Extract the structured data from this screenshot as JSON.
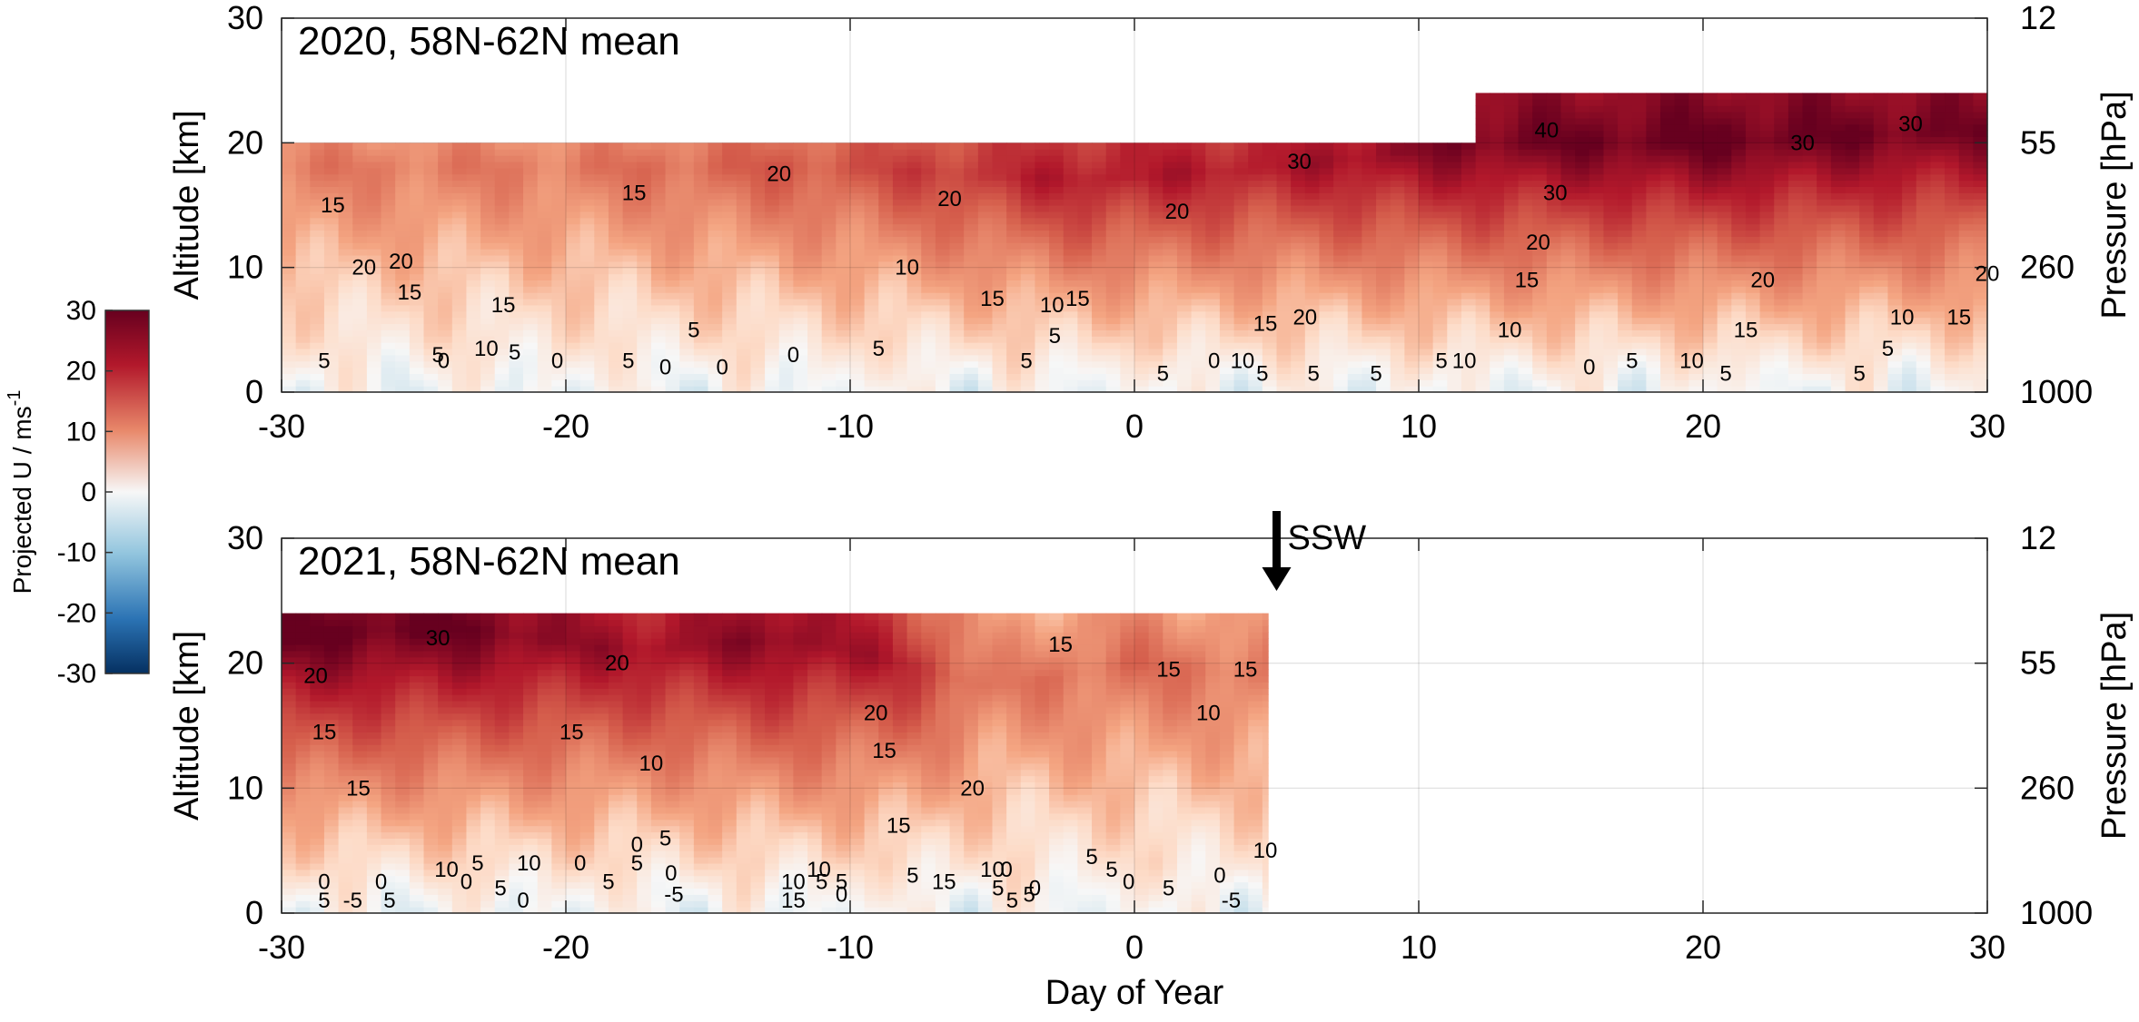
{
  "chart_data": {
    "type": "heatmap",
    "colorbar": {
      "title": "Projected U / ms",
      "title_superscript": "-1",
      "range": [
        -30,
        30
      ],
      "ticks": [
        30,
        20,
        10,
        0,
        -10,
        -20,
        -30
      ],
      "colormap": "blue-white-red",
      "colors": {
        "negative": "#1f4e8c",
        "zero": "#f4f6f7",
        "positive": "#6e0019"
      }
    },
    "panels": [
      {
        "title": "2020, 58N-62N mean",
        "xlabel": "",
        "ylabel": "Altitude [km]",
        "ylabel_right": "Pressure [hPa]",
        "xlim": [
          -30,
          30
        ],
        "ylim": [
          0,
          30
        ],
        "x_ticks": [
          "-30",
          "-20",
          "-10",
          "0",
          "10",
          "20",
          "30"
        ],
        "y_ticks": [
          "0",
          "10",
          "20",
          "30"
        ],
        "right_ticks": [
          "1000",
          "260",
          "55",
          "12"
        ],
        "grid": true,
        "data_top": [
          {
            "x": -30,
            "top": 20
          },
          {
            "x": 12,
            "top": 20
          },
          {
            "x": 12,
            "top": 24
          },
          {
            "x": 30,
            "top": 24
          }
        ],
        "jet": [
          {
            "x": -30,
            "z": 18,
            "peak": 16
          },
          {
            "x": -20,
            "z": 18,
            "peak": 16
          },
          {
            "x": -10,
            "z": 18,
            "peak": 22
          },
          {
            "x": -2,
            "z": 17,
            "peak": 30
          },
          {
            "x": 5,
            "z": 18,
            "peak": 30
          },
          {
            "x": 12,
            "z": 20,
            "peak": 38
          },
          {
            "x": 20,
            "z": 20,
            "peak": 40
          },
          {
            "x": 30,
            "z": 21,
            "peak": 38
          }
        ],
        "contour_labels": [
          {
            "x": -28.2,
            "y": 15,
            "text": "15"
          },
          {
            "x": -27.1,
            "y": 10,
            "text": "20"
          },
          {
            "x": -25.8,
            "y": 10.5,
            "text": "20"
          },
          {
            "x": -25.5,
            "y": 8,
            "text": "15"
          },
          {
            "x": -28.5,
            "y": 2.5,
            "text": "5"
          },
          {
            "x": -24.5,
            "y": 3,
            "text": "5"
          },
          {
            "x": -24.3,
            "y": 2.5,
            "text": "0"
          },
          {
            "x": -22.2,
            "y": 7,
            "text": "15"
          },
          {
            "x": -22.8,
            "y": 3.5,
            "text": "10"
          },
          {
            "x": -21.8,
            "y": 3.2,
            "text": "5"
          },
          {
            "x": -20.3,
            "y": 2.5,
            "text": "0"
          },
          {
            "x": -17.8,
            "y": 2.5,
            "text": "5"
          },
          {
            "x": -17.6,
            "y": 16,
            "text": "15"
          },
          {
            "x": -16.5,
            "y": 2,
            "text": "0"
          },
          {
            "x": -15.5,
            "y": 5,
            "text": "5"
          },
          {
            "x": -14.5,
            "y": 2,
            "text": "0"
          },
          {
            "x": -12.5,
            "y": 17.5,
            "text": "20"
          },
          {
            "x": -12,
            "y": 3,
            "text": "0"
          },
          {
            "x": -9,
            "y": 3.5,
            "text": "5"
          },
          {
            "x": -8,
            "y": 10,
            "text": "10"
          },
          {
            "x": -6.5,
            "y": 15.5,
            "text": "20"
          },
          {
            "x": -5,
            "y": 7.5,
            "text": "15"
          },
          {
            "x": -3.8,
            "y": 2.5,
            "text": "5"
          },
          {
            "x": -2.8,
            "y": 4.5,
            "text": "5"
          },
          {
            "x": -2.9,
            "y": 7,
            "text": "10"
          },
          {
            "x": -2,
            "y": 7.5,
            "text": "15"
          },
          {
            "x": 1,
            "y": 1.5,
            "text": "5"
          },
          {
            "x": 1.5,
            "y": 14.5,
            "text": "20"
          },
          {
            "x": 2.8,
            "y": 2.5,
            "text": "0"
          },
          {
            "x": 3.8,
            "y": 2.5,
            "text": "10"
          },
          {
            "x": 4.5,
            "y": 1.5,
            "text": "5"
          },
          {
            "x": 4.6,
            "y": 5.5,
            "text": "15"
          },
          {
            "x": 5.8,
            "y": 18.5,
            "text": "30"
          },
          {
            "x": 6,
            "y": 6,
            "text": "20"
          },
          {
            "x": 6.3,
            "y": 1.5,
            "text": "5"
          },
          {
            "x": 8.5,
            "y": 1.5,
            "text": "5"
          },
          {
            "x": 10.8,
            "y": 2.5,
            "text": "5"
          },
          {
            "x": 11.6,
            "y": 2.5,
            "text": "10"
          },
          {
            "x": 13.2,
            "y": 5,
            "text": "10"
          },
          {
            "x": 13.8,
            "y": 9,
            "text": "15"
          },
          {
            "x": 14.5,
            "y": 21,
            "text": "40"
          },
          {
            "x": 14.8,
            "y": 16,
            "text": "30"
          },
          {
            "x": 14.2,
            "y": 12,
            "text": "20"
          },
          {
            "x": 16,
            "y": 2,
            "text": "0"
          },
          {
            "x": 17.5,
            "y": 2.5,
            "text": "5"
          },
          {
            "x": 19.6,
            "y": 2.5,
            "text": "10"
          },
          {
            "x": 20.8,
            "y": 1.5,
            "text": "5"
          },
          {
            "x": 21.5,
            "y": 5,
            "text": "15"
          },
          {
            "x": 22.1,
            "y": 9,
            "text": "20"
          },
          {
            "x": 23.5,
            "y": 20,
            "text": "30"
          },
          {
            "x": 25.5,
            "y": 1.5,
            "text": "5"
          },
          {
            "x": 26.5,
            "y": 3.5,
            "text": "5"
          },
          {
            "x": 27,
            "y": 6,
            "text": "10"
          },
          {
            "x": 27.3,
            "y": 21.5,
            "text": "30"
          },
          {
            "x": 29,
            "y": 6,
            "text": "15"
          },
          {
            "x": 30,
            "y": 9.5,
            "text": "20"
          }
        ],
        "annotations": []
      },
      {
        "title": "2021, 58N-62N mean",
        "xlabel": "Day of Year",
        "ylabel": "Altitude [km]",
        "ylabel_right": "Pressure [hPa]",
        "xlim": [
          -30,
          30
        ],
        "ylim": [
          0,
          30
        ],
        "x_ticks": [
          "-30",
          "-20",
          "-10",
          "0",
          "10",
          "20",
          "30"
        ],
        "y_ticks": [
          "0",
          "10",
          "20",
          "30"
        ],
        "right_ticks": [
          "1000",
          "260",
          "55",
          "12"
        ],
        "grid": true,
        "data_top": [
          {
            "x": -30,
            "top": 24
          },
          {
            "x": 4.7,
            "top": 24
          }
        ],
        "jet": [
          {
            "x": -30,
            "z": 22,
            "peak": 40
          },
          {
            "x": -24,
            "z": 23,
            "peak": 40
          },
          {
            "x": -18,
            "z": 21,
            "peak": 32
          },
          {
            "x": -12,
            "z": 22,
            "peak": 36
          },
          {
            "x": -8,
            "z": 20,
            "peak": 28
          },
          {
            "x": -5,
            "z": 18,
            "peak": 16
          },
          {
            "x": 0,
            "z": 20,
            "peak": 18
          },
          {
            "x": 4.7,
            "z": 19,
            "peak": 16
          }
        ],
        "contour_labels": [
          {
            "x": -24.5,
            "y": 22,
            "text": "30"
          },
          {
            "x": -28.8,
            "y": 19,
            "text": "20"
          },
          {
            "x": -28.5,
            "y": 14.5,
            "text": "15"
          },
          {
            "x": -27.3,
            "y": 10,
            "text": "15"
          },
          {
            "x": -28.5,
            "y": 2.5,
            "text": "0"
          },
          {
            "x": -28.5,
            "y": 1,
            "text": "5"
          },
          {
            "x": -27.5,
            "y": 1,
            "text": "-5"
          },
          {
            "x": -26.5,
            "y": 2.5,
            "text": "0"
          },
          {
            "x": -26.2,
            "y": 1,
            "text": "5"
          },
          {
            "x": -24.2,
            "y": 3.5,
            "text": "10"
          },
          {
            "x": -23.5,
            "y": 2.5,
            "text": "0"
          },
          {
            "x": -23.1,
            "y": 4,
            "text": "5"
          },
          {
            "x": -22.3,
            "y": 2,
            "text": "5"
          },
          {
            "x": -21.5,
            "y": 1,
            "text": "0"
          },
          {
            "x": -21.3,
            "y": 4,
            "text": "10"
          },
          {
            "x": -19.5,
            "y": 4,
            "text": "0"
          },
          {
            "x": -18.5,
            "y": 2.5,
            "text": "5"
          },
          {
            "x": -18.2,
            "y": 20,
            "text": "20"
          },
          {
            "x": -19.8,
            "y": 14.5,
            "text": "15"
          },
          {
            "x": -17.5,
            "y": 5.5,
            "text": "0"
          },
          {
            "x": -17,
            "y": 12,
            "text": "10"
          },
          {
            "x": -17.5,
            "y": 4,
            "text": "5"
          },
          {
            "x": -16.5,
            "y": 6,
            "text": "5"
          },
          {
            "x": -16.3,
            "y": 3.2,
            "text": "0"
          },
          {
            "x": -16.2,
            "y": 1.5,
            "text": "-5"
          },
          {
            "x": -12,
            "y": 2.5,
            "text": "10"
          },
          {
            "x": -12,
            "y": 1,
            "text": "15"
          },
          {
            "x": -11,
            "y": 2.5,
            "text": "5"
          },
          {
            "x": -11.1,
            "y": 3.5,
            "text": "10"
          },
          {
            "x": -10.3,
            "y": 2.5,
            "text": "5"
          },
          {
            "x": -10.3,
            "y": 1.5,
            "text": "0"
          },
          {
            "x": -8.8,
            "y": 13,
            "text": "15"
          },
          {
            "x": -9.1,
            "y": 16,
            "text": "20"
          },
          {
            "x": -8.3,
            "y": 7,
            "text": "15"
          },
          {
            "x": -7.8,
            "y": 3,
            "text": "5"
          },
          {
            "x": -6.7,
            "y": 2.5,
            "text": "15"
          },
          {
            "x": -5.7,
            "y": 10,
            "text": "20"
          },
          {
            "x": -5,
            "y": 3.5,
            "text": "10"
          },
          {
            "x": -4.5,
            "y": 3.5,
            "text": "0"
          },
          {
            "x": -4.8,
            "y": 2,
            "text": "5"
          },
          {
            "x": -4.3,
            "y": 1,
            "text": "5"
          },
          {
            "x": -3.7,
            "y": 1.5,
            "text": "5"
          },
          {
            "x": -3.5,
            "y": 2,
            "text": "0"
          },
          {
            "x": -2.6,
            "y": 21.5,
            "text": "15"
          },
          {
            "x": -1.5,
            "y": 4.5,
            "text": "5"
          },
          {
            "x": -0.8,
            "y": 3.5,
            "text": "5"
          },
          {
            "x": -0.2,
            "y": 2.5,
            "text": "0"
          },
          {
            "x": 1.2,
            "y": 2,
            "text": "5"
          },
          {
            "x": 1.2,
            "y": 19.5,
            "text": "15"
          },
          {
            "x": 2.6,
            "y": 16,
            "text": "10"
          },
          {
            "x": 3,
            "y": 3,
            "text": "0"
          },
          {
            "x": 3.4,
            "y": 1,
            "text": "-5"
          },
          {
            "x": 3.9,
            "y": 19.5,
            "text": "15"
          },
          {
            "x": 4.6,
            "y": 5,
            "text": "10"
          }
        ],
        "annotations": [
          {
            "text": "SSW",
            "x": 5,
            "arrow": "down"
          }
        ]
      }
    ]
  }
}
